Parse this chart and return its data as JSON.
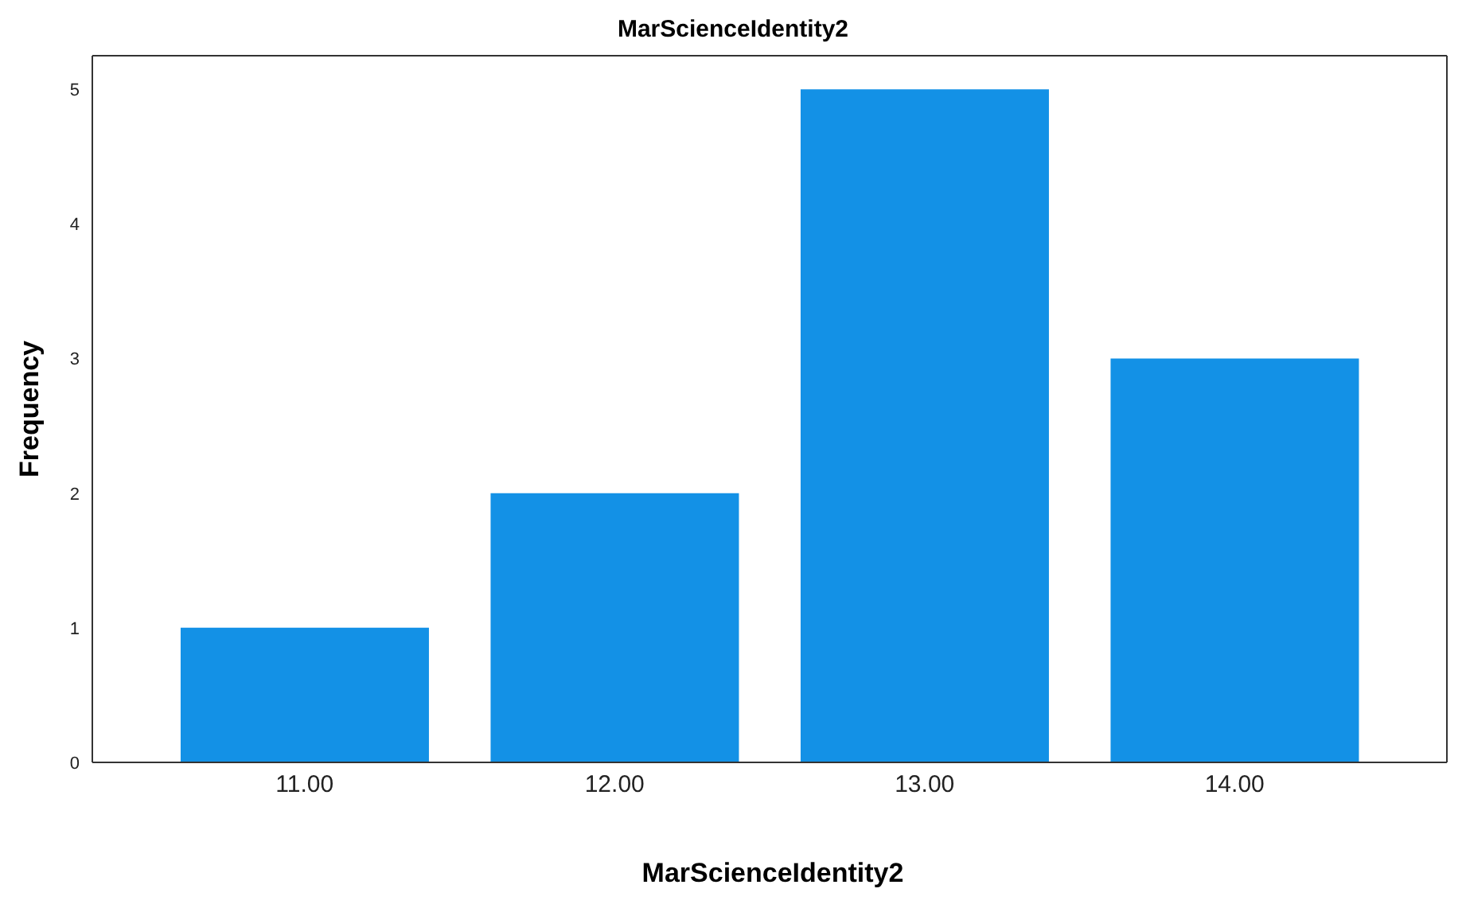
{
  "chart_data": {
    "type": "bar",
    "title": "MarScienceIdentity2",
    "xlabel": "MarScienceIdentity2",
    "ylabel": "Frequency",
    "categories": [
      "11.00",
      "12.00",
      "13.00",
      "14.00"
    ],
    "values": [
      1,
      2,
      5,
      3
    ],
    "color": "#1391e6",
    "ylim": [
      0,
      5.25
    ],
    "yticks": [
      0,
      1,
      2,
      3,
      4,
      5
    ],
    "grid": false,
    "legend": false
  }
}
